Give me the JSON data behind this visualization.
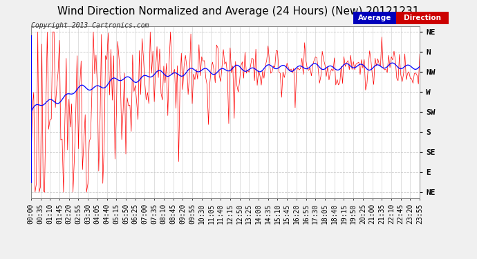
{
  "title": "Wind Direction Normalized and Average (24 Hours) (New) 20121231",
  "copyright": "Copyright 2013 Cartronics.com",
  "y_labels": [
    "NE",
    "N",
    "NW",
    "W",
    "SW",
    "S",
    "SE",
    "E",
    "NE"
  ],
  "y_ticks": [
    8,
    7,
    6,
    5,
    4,
    3,
    2,
    1,
    0
  ],
  "x_tick_labels": [
    "00:00",
    "00:35",
    "01:10",
    "01:45",
    "02:20",
    "02:55",
    "03:30",
    "04:05",
    "04:40",
    "05:15",
    "05:50",
    "06:25",
    "07:00",
    "07:35",
    "08:10",
    "08:45",
    "09:20",
    "09:55",
    "10:30",
    "11:05",
    "11:40",
    "12:15",
    "12:50",
    "13:25",
    "14:00",
    "14:35",
    "15:10",
    "15:45",
    "16:20",
    "16:55",
    "17:30",
    "18:05",
    "18:40",
    "19:15",
    "19:50",
    "20:25",
    "21:00",
    "21:35",
    "22:10",
    "22:45",
    "23:20",
    "23:55"
  ],
  "background_color": "#f0f0f0",
  "plot_background": "#ffffff",
  "grid_color": "#c8c8c8",
  "red_color": "#ff0000",
  "blue_color": "#0000ff",
  "title_fontsize": 11,
  "copyright_fontsize": 7,
  "axis_fontsize": 7,
  "ylabel_fontsize": 8,
  "ylim_min": 0,
  "ylim_max": 8
}
